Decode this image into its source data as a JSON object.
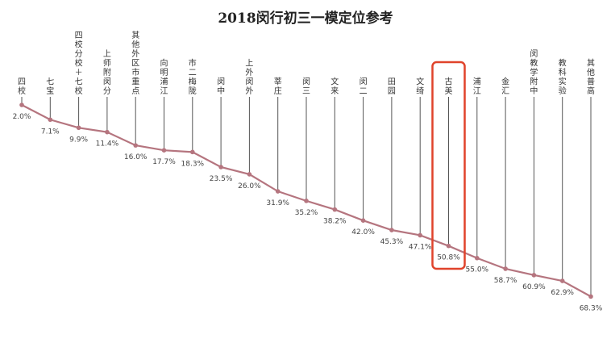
{
  "chart_data": {
    "type": "line",
    "title": "2018闵行初三一模定位参考",
    "categories": [
      "四校",
      "七宝",
      "四校分校+七校",
      "上师附闵分",
      "其他外区市重点",
      "向明浦江",
      "市二梅陇",
      "闵中",
      "上外闵外",
      "莘庄",
      "闵三",
      "文来",
      "闵二",
      "田园",
      "文绮",
      "古美",
      "浦江",
      "金汇",
      "闵教学附中",
      "教科实验",
      "其他普高"
    ],
    "values": [
      2.0,
      7.1,
      9.9,
      11.4,
      16.0,
      17.7,
      18.3,
      23.5,
      26.0,
      31.9,
      35.2,
      38.2,
      42.0,
      45.3,
      47.1,
      50.8,
      55.0,
      58.7,
      60.9,
      62.9,
      68.3
    ],
    "value_labels": [
      "2.0%",
      "7.1%",
      "9.9%",
      "11.4%",
      "16.0%",
      "17.7%",
      "18.3%",
      "23.5%",
      "26.0%",
      "31.9%",
      "35.2%",
      "38.2%",
      "42.0%",
      "45.3%",
      "47.1%",
      "50.8%",
      "55.0%",
      "58.7%",
      "60.9%",
      "62.9%",
      "68.3%"
    ],
    "unit": "%",
    "highlighted_category": "古美",
    "grid": false,
    "legend": "none",
    "colors": {
      "line": "#b5757f",
      "highlight": "#e0432b",
      "drop_lines": "#555555"
    }
  }
}
